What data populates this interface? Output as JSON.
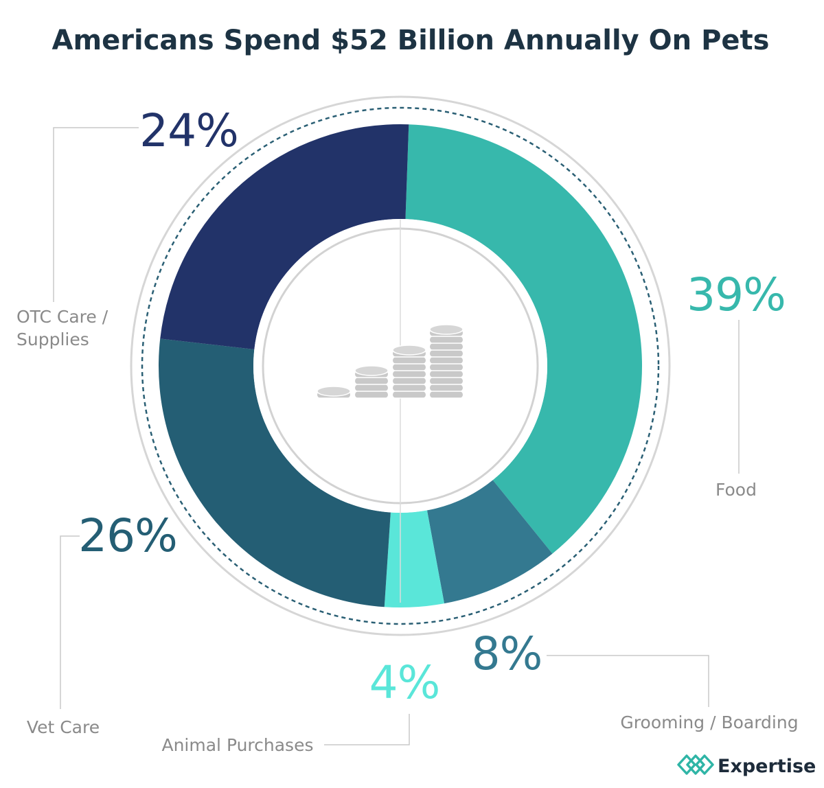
{
  "chart_data": {
    "type": "pie",
    "subtype": "donut",
    "title": "Americans Spend $52 Billion Annually On Pets",
    "unit": "%",
    "categories": [
      "Food",
      "Grooming / Boarding",
      "Animal Purchases",
      "Vet Care",
      "OTC Care / Supplies"
    ],
    "values": [
      39,
      8,
      4,
      26,
      24
    ],
    "labels": [
      "39%",
      "8%",
      "4%",
      "26%",
      "24%"
    ],
    "colors": [
      "#37b8ac",
      "#347990",
      "#5ae6d9",
      "#245e74",
      "#223369"
    ],
    "start_angle_deg": 2,
    "direction": "clockwise"
  },
  "center_icon": "coin-stacks-icon",
  "brand": {
    "name": "Expertise",
    "icon": "expertise-logo-icon",
    "color": "#2fb5a6"
  }
}
